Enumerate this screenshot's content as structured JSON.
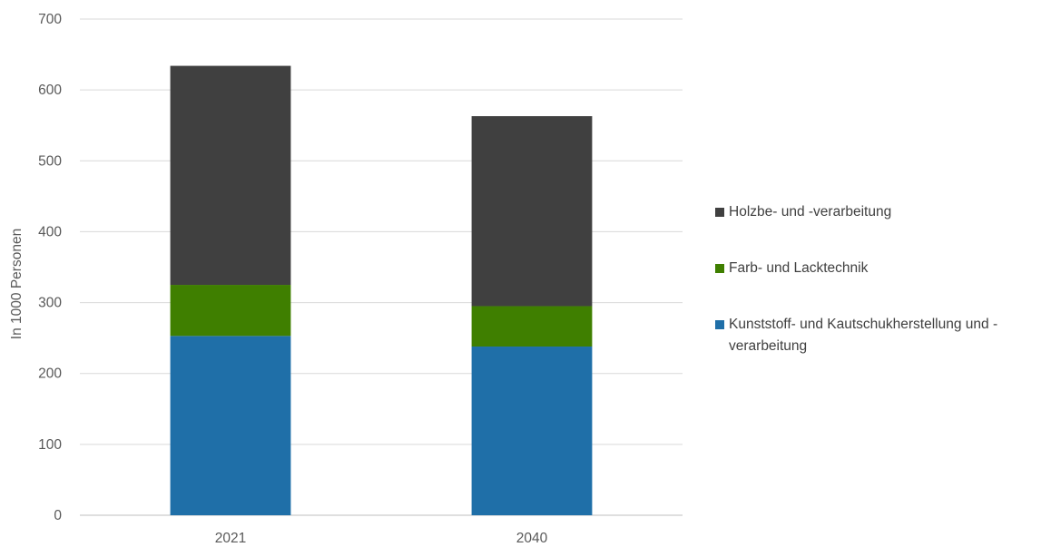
{
  "chart_data": {
    "type": "bar",
    "stacked": true,
    "categories": [
      "2021",
      "2040"
    ],
    "series": [
      {
        "name": "Kunststoff- und Kautschukherstellung und -verarbeitung",
        "values": [
          253,
          238
        ],
        "color": "#1f6fa8"
      },
      {
        "name": "Farb- und Lacktechnik",
        "values": [
          72,
          57
        ],
        "color": "#3f7f00"
      },
      {
        "name": "Holzbe- und -verarbeitung",
        "values": [
          309,
          268
        ],
        "color": "#404040"
      }
    ],
    "ylabel": "In 1000 Personen",
    "ylim": [
      0,
      700
    ],
    "yticks": [
      "0",
      "100",
      "200",
      "300",
      "400",
      "500",
      "600",
      "700"
    ],
    "grid": true,
    "legend_position": "right"
  },
  "legend": {
    "items": [
      {
        "label": "Holzbe- und -verarbeitung",
        "color": "#404040"
      },
      {
        "label": "Farb- und Lacktechnik",
        "color": "#3f7f00"
      },
      {
        "label": "Kunststoff- und Kautschukherstellung und -verarbeitung",
        "color": "#1f6fa8"
      }
    ]
  }
}
